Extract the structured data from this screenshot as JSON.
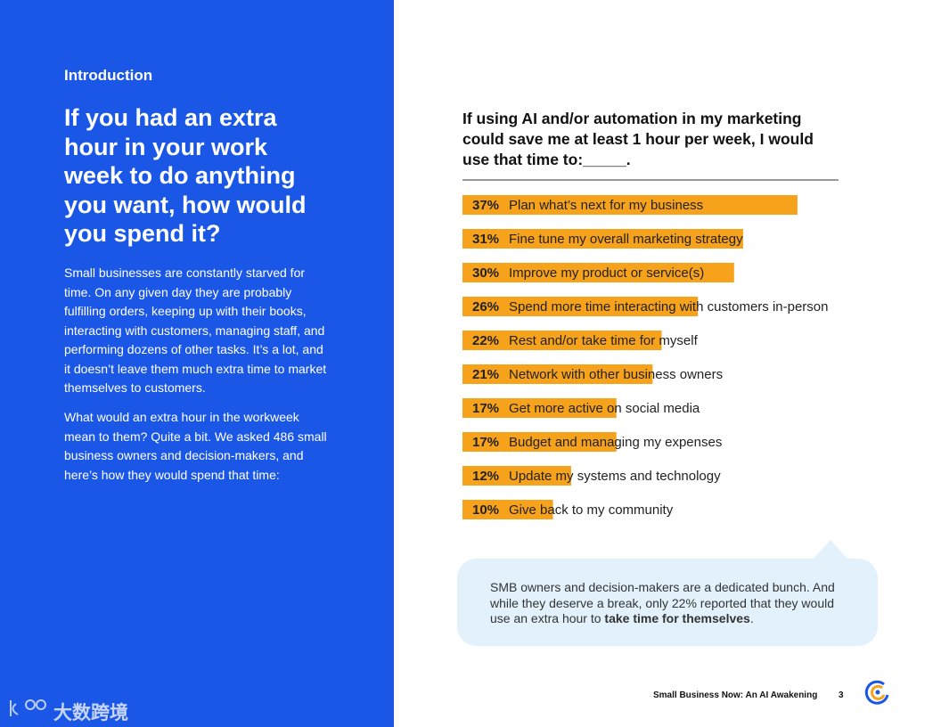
{
  "intro": {
    "label": "Introduction",
    "heading": "If you had an extra hour in your work week to do anything you want, how would you spend it?",
    "paragraphs": [
      "Small businesses are constantly starved for time. On any given day they are probably fulfilling orders, keeping up with their books, interacting with customers, managing staff, and performing dozens of other tasks. It’s a lot, and it doesn’t leave them much extra time to market themselves to customers.",
      "What would an extra hour in the workweek mean to them? Quite a bit. We asked 486 small business owners and decision-makers, and here’s how they would spend that time:"
    ]
  },
  "watermark": "大数跨境",
  "chart_data": {
    "type": "bar",
    "orientation": "horizontal",
    "title": "If using AI and/or automation in my marketing could save me at least 1 hour per week, I would use that time to:_____.",
    "color": "#f7a21b",
    "categories": [
      "Plan what’s next for my business",
      "Fine tune my overall marketing strategy",
      "Improve my product or service(s)",
      "Spend more time interacting with customers in-person",
      "Rest and/or take time for myself",
      "Network with other business owners",
      "Get more active on social media",
      "Budget and managing my expenses",
      "Update my systems and technology",
      "Give back to my community"
    ],
    "values": [
      37,
      31,
      30,
      26,
      22,
      21,
      17,
      17,
      12,
      10
    ],
    "value_labels": [
      "37%",
      "31%",
      "30%",
      "26%",
      "22%",
      "21%",
      "17%",
      "17%",
      "12%",
      "10%"
    ]
  },
  "callout": {
    "text": "SMB owners and decision-makers are a dedicated bunch. And while they deserve a break, only 22% reported that they would use an extra hour to ",
    "bold": "take time for themselves",
    "end": "."
  },
  "footer": {
    "title": "Small Business Now: An AI Awakening",
    "page": "3"
  }
}
